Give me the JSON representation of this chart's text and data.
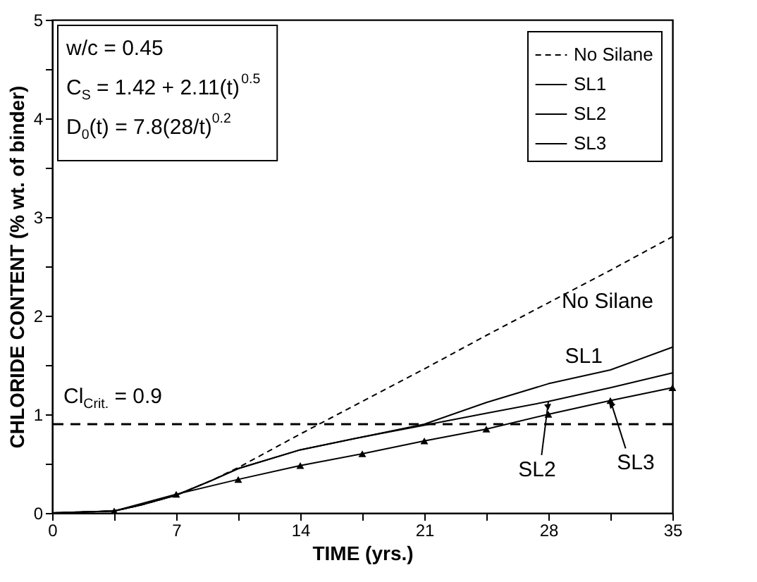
{
  "chart_data": {
    "type": "line",
    "xlabel": "TIME (yrs.)",
    "ylabel": "CHLORIDE CONTENT (% wt. of binder)",
    "xlim": [
      0,
      35
    ],
    "ylim": [
      0,
      5
    ],
    "xticks": [
      0,
      {
        "value": 3.5,
        "label": null
      },
      7,
      {
        "value": 10.5,
        "label": null
      },
      14,
      {
        "value": 17.5,
        "label": null
      },
      21,
      {
        "value": 24.5,
        "label": null
      },
      28,
      {
        "value": 31.5,
        "label": null
      },
      35
    ],
    "yticks": [
      0,
      {
        "value": 0.5,
        "label": null
      },
      1,
      {
        "value": 1.5,
        "label": null
      },
      2,
      {
        "value": 2.5,
        "label": null
      },
      3,
      {
        "value": 3.5,
        "label": null
      },
      4,
      {
        "value": 4.5,
        "label": null
      },
      5
    ],
    "x": [
      0,
      3.5,
      5,
      7,
      9,
      10.5,
      14,
      17.5,
      21,
      24.5,
      28,
      31.5,
      35
    ],
    "series": [
      {
        "name": "No Silane",
        "color": "#000000",
        "line_style": "dashed",
        "marker": "none",
        "values": [
          0,
          0.02,
          0.08,
          0.18,
          0.33,
          0.46,
          0.8,
          1.13,
          1.46,
          1.8,
          2.13,
          2.46,
          2.8
        ]
      },
      {
        "name": "SL1",
        "color": "#000000",
        "line_style": "solid",
        "marker": "none",
        "values": [
          0,
          0.02,
          0.08,
          0.18,
          0.33,
          0.45,
          0.64,
          0.77,
          0.9,
          1.12,
          1.31,
          1.45,
          1.68
        ]
      },
      {
        "name": "SL2",
        "color": "#000000",
        "line_style": "solid",
        "marker": "none",
        "values": [
          0,
          0.02,
          0.08,
          0.18,
          0.33,
          0.45,
          0.64,
          0.77,
          0.89,
          1.01,
          1.13,
          1.27,
          1.42
        ]
      },
      {
        "name": "SL3",
        "color": "#000000",
        "line_style": "solid",
        "marker": "triangle",
        "x": [
          0,
          3.5,
          7,
          10.5,
          14,
          17.5,
          21,
          24.5,
          28,
          31.5,
          35
        ],
        "values": [
          0,
          0.02,
          0.19,
          0.34,
          0.48,
          0.6,
          0.73,
          0.85,
          1.0,
          1.14,
          1.27
        ]
      }
    ],
    "ref_lines": [
      {
        "axis": "y",
        "value": 0.9,
        "label": "Cl$_{Crit.}$ = 0.9",
        "line_style": "dashed",
        "color": "#000000"
      }
    ],
    "annotations": [
      "w/c = 0.45",
      "C$_{S}$ = 1.42 + 2.11(t)$^{0.5}$",
      "D$_{0}$(t) = 7.8(28/t)$^{0.2}$",
      {
        "text": "No Silane",
        "x": 31,
        "y": 2.41
      },
      {
        "text": "SL1",
        "x": 30,
        "y": 1.39
      },
      {
        "text": "SL2",
        "x": 28,
        "y": 1.13
      },
      {
        "text": "SL3",
        "x": 31.5,
        "y": 1.14
      }
    ],
    "legend": "top right",
    "grid": false
  }
}
